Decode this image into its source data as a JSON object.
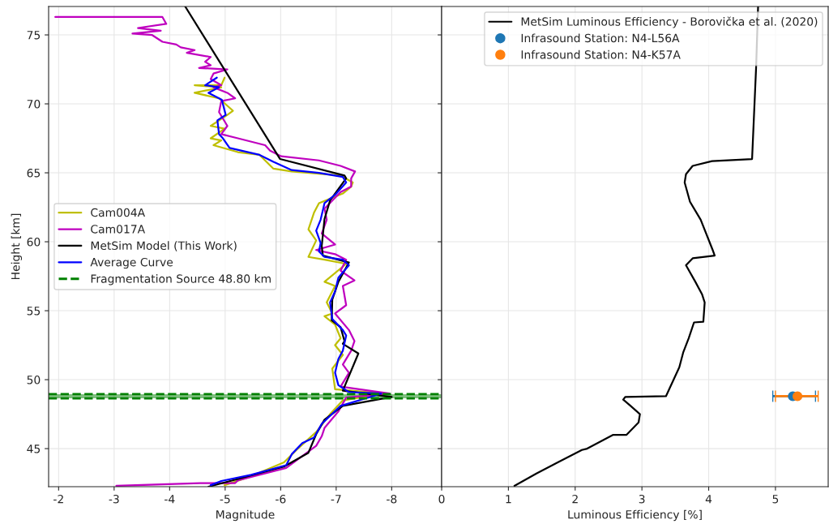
{
  "chart_data": [
    {
      "type": "line",
      "xlabel": "Magnitude",
      "ylabel": "Height [km]",
      "xlim": [
        -1.82,
        -8.9
      ],
      "xticks": [
        -2,
        -3,
        -4,
        -5,
        -6,
        -7,
        -8
      ],
      "ylim": [
        42.24,
        77.06
      ],
      "yticks": [
        45,
        50,
        55,
        60,
        65,
        70,
        75
      ],
      "grid": true,
      "legend": "center left",
      "series": [
        {
          "name": "Cam004A",
          "color": "#bfbf00",
          "x": [
            -4.99,
            -4.93,
            -4.45,
            -4.93,
            -4.45,
            -4.89,
            -5.14,
            -5.04,
            -4.74,
            -4.99,
            -4.74,
            -4.93,
            -4.79,
            -5.23,
            -5.62,
            -5.87,
            -6.2,
            -7.08,
            -7.3,
            -7.27,
            -7.12,
            -6.69,
            -6.6,
            -6.5,
            -6.64,
            -6.5,
            -6.79,
            -7.18,
            -6.79,
            -6.98,
            -6.83,
            -6.93,
            -6.79,
            -6.98,
            -7.08,
            -6.98,
            -7.12,
            -6.93,
            -6.98,
            -7.85,
            -7.12,
            -6.89,
            -6.64,
            -6.31,
            -6.06,
            -5.47,
            -4.99
          ],
          "values": [
            71.9,
            71.35,
            71.35,
            71.2,
            70.8,
            70.4,
            69.5,
            69.2,
            68.4,
            68.2,
            67.5,
            67.35,
            67.0,
            66.5,
            66.3,
            65.3,
            65.1,
            64.8,
            64.3,
            64.0,
            63.5,
            62.8,
            62.1,
            60.9,
            60.1,
            58.9,
            58.7,
            58.4,
            57.1,
            56.8,
            55.6,
            54.8,
            54.6,
            54.0,
            53.0,
            52.5,
            51.8,
            50.8,
            49.3,
            49.0,
            48.5,
            47.5,
            46.2,
            45.0,
            44.0,
            43.0,
            42.35
          ]
        },
        {
          "name": "Cam017A",
          "color": "#bf00bf",
          "x": [
            -1.94,
            -3.87,
            -3.94,
            -3.43,
            -3.84,
            -3.33,
            -3.68,
            -3.87,
            -4.12,
            -4.2,
            -4.45,
            -4.31,
            -4.74,
            -4.64,
            -4.74,
            -4.53,
            -5.04,
            -4.79,
            -4.74,
            -4.93,
            -4.79,
            -5.04,
            -5.18,
            -4.93,
            -4.89,
            -5.04,
            -4.93,
            -5.23,
            -5.72,
            -5.81,
            -6.01,
            -6.69,
            -7.08,
            -7.34,
            -7.27,
            -7.27,
            -7.08,
            -6.79,
            -6.83,
            -6.74,
            -6.98,
            -6.64,
            -6.98,
            -7.18,
            -7.08,
            -7.33,
            -7.12,
            -7.18,
            -6.98,
            -7.23,
            -7.33,
            -7.27,
            -7.12,
            -7.23,
            -7.08,
            -7.96,
            -7.18,
            -7.04,
            -6.79,
            -6.74,
            -6.64,
            -6.1,
            -5.23,
            -5.18,
            -4.55,
            -3.04
          ],
          "values": [
            76.3,
            76.3,
            75.8,
            75.5,
            75.3,
            75.1,
            75.0,
            74.5,
            74.3,
            74.1,
            73.9,
            73.7,
            73.4,
            73.05,
            72.8,
            72.6,
            72.5,
            72.2,
            71.8,
            71.35,
            71.2,
            70.8,
            70.4,
            70.2,
            69.4,
            68.4,
            67.8,
            67.5,
            67.0,
            66.6,
            66.2,
            65.9,
            65.5,
            65.1,
            64.6,
            64.0,
            63.6,
            62.4,
            61.6,
            60.6,
            59.8,
            59.4,
            59.1,
            58.7,
            57.9,
            57.2,
            56.8,
            55.4,
            54.8,
            53.6,
            52.8,
            52.1,
            51.1,
            50.5,
            49.5,
            49.0,
            48.7,
            47.7,
            46.5,
            45.9,
            45.2,
            43.6,
            42.7,
            42.5,
            42.5,
            42.3
          ]
        },
        {
          "name": "MetSim Model (This Work)",
          "color": "#000000",
          "x": [
            -4.28,
            -5.99,
            -7.15,
            -7.18,
            -6.89,
            -6.79,
            -6.74,
            -6.76,
            -7.23,
            -7.04,
            -6.93,
            -6.92,
            -7.08,
            -7.15,
            -7.12,
            -7.4,
            -7.12,
            -8.0,
            -7.12,
            -6.79,
            -6.64,
            -6.5,
            -6.06,
            -5.23,
            -4.7
          ],
          "values": [
            77.06,
            66.0,
            64.8,
            64.6,
            63.0,
            61.65,
            59.7,
            59.0,
            58.5,
            57.1,
            55.8,
            54.3,
            53.8,
            52.8,
            52.6,
            51.9,
            49.2,
            48.75,
            48.1,
            47.1,
            46.05,
            44.7,
            43.7,
            42.8,
            42.24
          ]
        },
        {
          "name": "Average Curve",
          "color": "#0000ff",
          "x": [
            -4.85,
            -4.64,
            -4.89,
            -4.7,
            -4.94,
            -5.01,
            -4.86,
            -4.89,
            -4.96,
            -5.08,
            -5.62,
            -5.87,
            -6.2,
            -6.69,
            -7.12,
            -7.18,
            -6.98,
            -6.79,
            -6.72,
            -6.64,
            -6.72,
            -6.69,
            -6.79,
            -7.12,
            -7.23,
            -7.04,
            -6.98,
            -6.89,
            -6.93,
            -7.12,
            -7.18,
            -7.12,
            -7.04,
            -6.98,
            -7.04,
            -7.23,
            -7.81,
            -7.66,
            -7.08,
            -6.74,
            -6.6,
            -6.39,
            -6.2,
            -6.1,
            -5.47,
            -4.93,
            -4.74
          ],
          "values": [
            71.9,
            71.35,
            71.2,
            70.8,
            70.3,
            69.2,
            68.8,
            67.8,
            67.5,
            66.8,
            66.3,
            65.8,
            65.2,
            65.0,
            64.7,
            64.3,
            63.4,
            62.8,
            61.6,
            60.8,
            59.9,
            59.3,
            58.9,
            58.7,
            58.3,
            57.4,
            56.4,
            55.6,
            54.4,
            53.6,
            53.2,
            52.1,
            51.5,
            50.5,
            49.6,
            49.1,
            49.0,
            48.8,
            48.1,
            46.8,
            45.8,
            45.4,
            44.6,
            43.8,
            43.1,
            42.65,
            42.35
          ]
        }
      ],
      "ref_lines": [
        {
          "axis": "y",
          "value": 48.95,
          "label": "Fragmentation Source 48.80 km",
          "color": "#008000",
          "line_style": "dashed"
        },
        {
          "axis": "y",
          "value": 48.65,
          "color": "#008000",
          "line_style": "dashed"
        }
      ],
      "bands": [
        {
          "axis": "y",
          "from": 48.65,
          "to": 48.95,
          "color": "#008000"
        }
      ]
    },
    {
      "type": "line",
      "xlabel": "Luminous Efficiency [%]",
      "xlim": [
        0,
        5.79
      ],
      "xticks": [
        0,
        1,
        2,
        3,
        4,
        5
      ],
      "ylim": [
        42.24,
        77.06
      ],
      "tick_labels": "x",
      "grid": true,
      "legend": "top right",
      "series": [
        {
          "name": "MetSim Luminous Efficiency - Borovička et al. (2020)",
          "color": "#000000",
          "x": [
            4.74,
            4.71,
            4.65,
            4.05,
            3.76,
            3.66,
            3.64,
            3.72,
            3.88,
            4.06,
            4.09,
            3.76,
            3.66,
            3.8,
            3.9,
            3.94,
            3.92,
            3.78,
            3.7,
            3.62,
            3.56,
            3.36,
            2.75,
            2.72,
            2.83,
            2.97,
            2.95,
            2.77,
            2.57,
            2.18,
            2.1,
            1.74,
            1.42,
            1.09
          ],
          "values": [
            77.06,
            72.6,
            66.0,
            65.85,
            65.5,
            64.9,
            64.3,
            62.9,
            61.6,
            59.4,
            59.0,
            58.8,
            58.3,
            57.1,
            56.2,
            55.6,
            54.2,
            54.15,
            53.0,
            52.0,
            50.9,
            48.8,
            48.75,
            48.55,
            48.1,
            47.5,
            46.9,
            46.0,
            46.0,
            45.0,
            44.9,
            44.0,
            43.2,
            42.3
          ]
        },
        {
          "name": "Infrasound Station: N4-L56A",
          "type": "scatter",
          "marker": "circle",
          "color": "#1f77b4",
          "x": [
            5.26
          ],
          "values": [
            48.8
          ],
          "xerrors": [
            [
              4.96,
              5.6
            ]
          ]
        },
        {
          "name": "Infrasound Station: N4-K57A",
          "type": "scatter",
          "marker": "circle",
          "color": "#ff7f0e",
          "x": [
            5.33
          ],
          "values": [
            48.8
          ],
          "xerrors": [
            [
              5.0,
              5.64
            ]
          ]
        }
      ]
    }
  ]
}
